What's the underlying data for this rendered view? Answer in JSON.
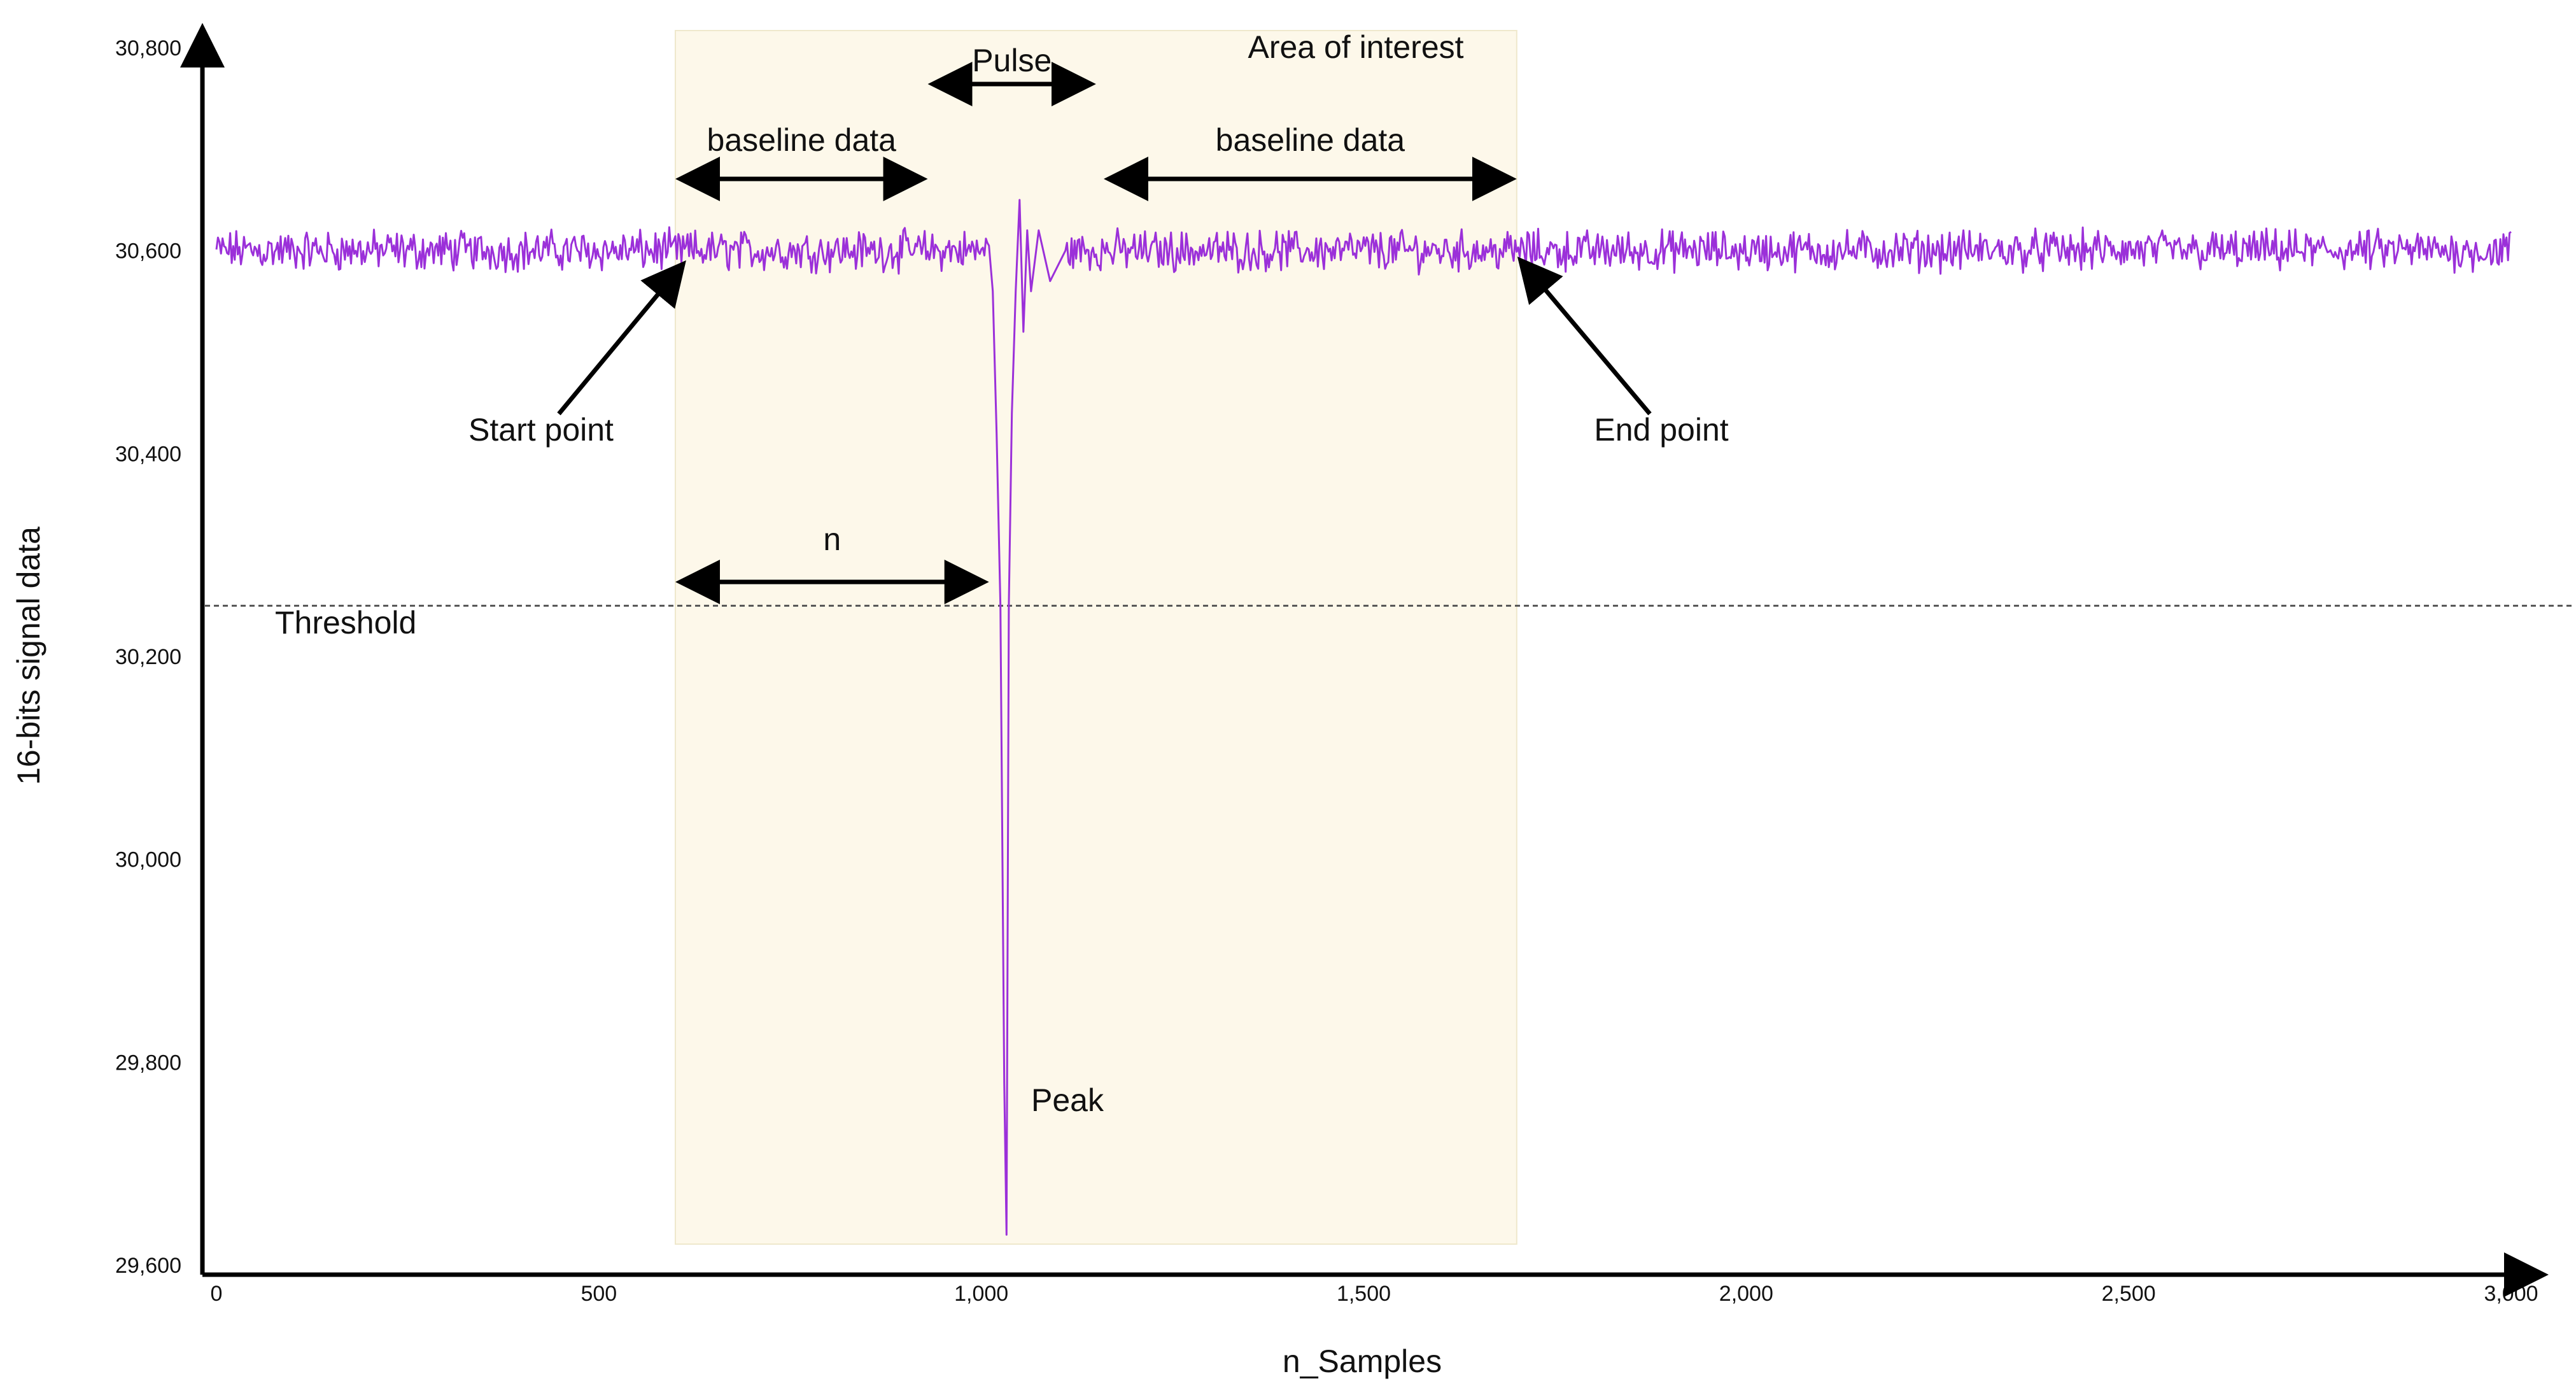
{
  "chart_data": {
    "type": "line",
    "title": "",
    "xlabel": "n_Samples",
    "ylabel": "16-bits signal data",
    "xlim": [
      0,
      3000
    ],
    "ylim": [
      29600,
      30800
    ],
    "xticks": [
      0,
      500,
      1000,
      1500,
      2000,
      2500,
      3000
    ],
    "xtick_labels": [
      "0",
      "500",
      "1,000",
      "1,500",
      "2,000",
      "2,500",
      "3,000"
    ],
    "yticks": [
      29600,
      29800,
      30000,
      30200,
      30400,
      30600,
      30800
    ],
    "ytick_labels": [
      "29,600",
      "29,800",
      "30,000",
      "30,200",
      "30,400",
      "30,600",
      "30,800"
    ],
    "grid": false,
    "series": [
      {
        "color": "#9b30d9",
        "baseline": 30600,
        "noise_amplitude": 15,
        "x_range": [
          0,
          3000
        ],
        "pulse": {
          "x": [
            1010,
            1015,
            1020,
            1025,
            1030,
            1033,
            1036,
            1040,
            1045,
            1050,
            1055,
            1060,
            1065,
            1075,
            1090,
            1110
          ],
          "y": [
            30605,
            30560,
            30420,
            30250,
            29780,
            29630,
            30250,
            30440,
            30560,
            30650,
            30520,
            30620,
            30560,
            30620,
            30570,
            30600
          ]
        }
      }
    ],
    "threshold": {
      "value": 30250,
      "label": "Threshold",
      "color": "#555555"
    },
    "area_of_interest": {
      "x_range": [
        600,
        1700
      ],
      "label": "Area of interest",
      "color": "#fdf8ea"
    },
    "annotations": {
      "pulse": {
        "label": "Pulse",
        "x_range": [
          930,
          1150
        ]
      },
      "baseline_left": {
        "label": "baseline data",
        "x_range": [
          600,
          930
        ]
      },
      "baseline_right": {
        "label": "baseline data",
        "x_range": [
          1160,
          1700
        ]
      },
      "n": {
        "label": "n",
        "x_range": [
          600,
          1010
        ]
      },
      "start_point": {
        "label": "Start point",
        "x": 600,
        "y": 30600
      },
      "end_point": {
        "label": "End point",
        "x": 1700,
        "y": 30600
      },
      "peak": {
        "label": "Peak"
      }
    }
  }
}
